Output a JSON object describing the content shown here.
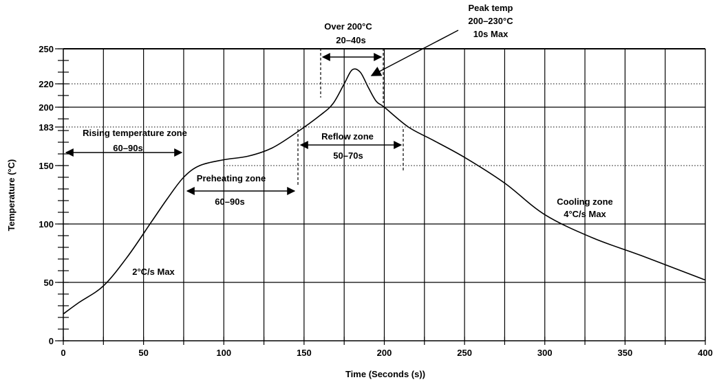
{
  "chart_data": {
    "type": "line",
    "title": "",
    "xlabel": "Time (Seconds (s))",
    "ylabel": "Temperature (°C)",
    "xlim": [
      0,
      400
    ],
    "ylim": [
      0,
      250
    ],
    "grid": true,
    "x_ticks": [
      0,
      50,
      100,
      150,
      200,
      250,
      300,
      350,
      400
    ],
    "y_ticks": [
      0,
      50,
      100,
      150,
      183,
      200,
      220,
      250
    ],
    "reference_lines": [
      {
        "y": 220,
        "style": "dotted"
      },
      {
        "y": 183,
        "style": "dotted"
      },
      {
        "y": 150,
        "style": "dotted"
      }
    ],
    "series": [
      {
        "values_x": [
          0,
          10,
          25,
          40,
          55,
          65,
          75,
          85,
          100,
          115,
          130,
          145,
          160,
          168,
          175,
          180,
          185,
          190,
          195,
          200,
          215,
          230,
          250,
          275,
          300,
          330,
          360,
          400
        ],
        "values_y": [
          23,
          33,
          47,
          72,
          102,
          122,
          140,
          150,
          155,
          158,
          165,
          178,
          193,
          203,
          220,
          232,
          230,
          217,
          205,
          200,
          183,
          172,
          157,
          135,
          108,
          88,
          73,
          52
        ]
      }
    ],
    "annotations": [
      {
        "label": "Rising temperature zone",
        "sub": "60–90s",
        "x0": 0,
        "x1": 75,
        "y": 162
      },
      {
        "label": "Preheating zone",
        "sub": "60–90s",
        "x0": 75,
        "x1": 145,
        "y": 129
      },
      {
        "label": "Reflow zone",
        "sub": "50–70s",
        "x0": 146,
        "x1": 211,
        "y": 167
      },
      {
        "label": "Over 200°C",
        "sub": "20–40s",
        "x0": 160,
        "x1": 200,
        "y": 243
      },
      {
        "label": "Peak temp",
        "sub": "200–230°C",
        "sub2": "10s Max"
      },
      {
        "label": "Cooling zone",
        "sub": "4°C/s Max"
      },
      {
        "label": "2°C/s Max"
      }
    ]
  }
}
